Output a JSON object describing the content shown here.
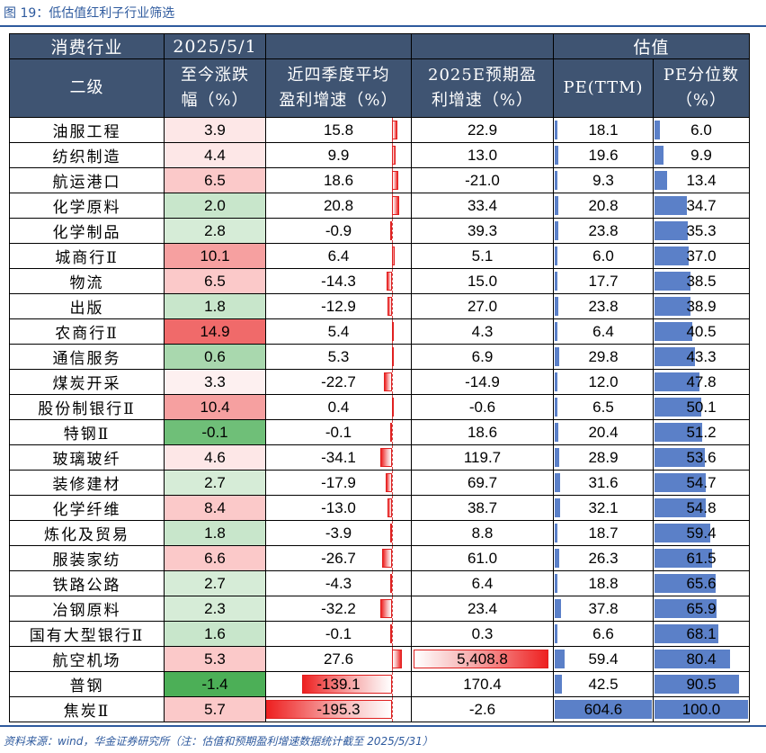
{
  "title": "图 19：低估值红利子行业筛选",
  "source": "资料来源：wind，华金证券研究所（注：估值和预期盈利增速数据统计截至 2025/5/31）",
  "headers": {
    "group1": "消费行业",
    "group2": "2025/5/1",
    "group_val": "估值",
    "col_name": "二级",
    "col_change": "至今涨跌\n幅（%）",
    "col_growth4q": "近四季度平均\n盈利增速（%）",
    "col_growth2025e": "2025E预期盈\n利增速（%）",
    "col_pe": "PE(TTM)",
    "col_pe_pct": "PE分位数\n（%）"
  },
  "rows": [
    {
      "name": "油服工程",
      "change": "3.9",
      "g4q": "15.8",
      "g25": "22.9",
      "pe": "18.1",
      "pct": "6.0"
    },
    {
      "name": "纺织制造",
      "change": "4.4",
      "g4q": "9.9",
      "g25": "13.0",
      "pe": "19.6",
      "pct": "9.9"
    },
    {
      "name": "航运港口",
      "change": "6.5",
      "g4q": "18.6",
      "g25": "-21.0",
      "pe": "9.3",
      "pct": "13.4"
    },
    {
      "name": "化学原料",
      "change": "2.0",
      "g4q": "20.8",
      "g25": "33.4",
      "pe": "20.8",
      "pct": "34.7"
    },
    {
      "name": "化学制品",
      "change": "2.8",
      "g4q": "-0.9",
      "g25": "39.3",
      "pe": "23.8",
      "pct": "35.3"
    },
    {
      "name": "城商行Ⅱ",
      "change": "10.1",
      "g4q": "6.4",
      "g25": "5.1",
      "pe": "6.0",
      "pct": "37.0"
    },
    {
      "name": "物流",
      "change": "6.5",
      "g4q": "-14.3",
      "g25": "15.0",
      "pe": "17.7",
      "pct": "38.5"
    },
    {
      "name": "出版",
      "change": "1.8",
      "g4q": "-12.9",
      "g25": "27.0",
      "pe": "23.8",
      "pct": "38.9"
    },
    {
      "name": "农商行Ⅱ",
      "change": "14.9",
      "g4q": "5.4",
      "g25": "4.3",
      "pe": "6.4",
      "pct": "40.5"
    },
    {
      "name": "通信服务",
      "change": "0.6",
      "g4q": "5.3",
      "g25": "6.9",
      "pe": "29.8",
      "pct": "43.3"
    },
    {
      "name": "煤炭开采",
      "change": "3.3",
      "g4q": "-22.7",
      "g25": "-14.9",
      "pe": "12.0",
      "pct": "47.8"
    },
    {
      "name": "股份制银行Ⅱ",
      "change": "10.4",
      "g4q": "0.4",
      "g25": "-0.6",
      "pe": "6.5",
      "pct": "50.1"
    },
    {
      "name": "特钢Ⅱ",
      "change": "-0.1",
      "g4q": "-0.1",
      "g25": "18.6",
      "pe": "20.4",
      "pct": "51.2"
    },
    {
      "name": "玻璃玻纤",
      "change": "4.6",
      "g4q": "-34.1",
      "g25": "119.7",
      "pe": "28.9",
      "pct": "53.6"
    },
    {
      "name": "装修建材",
      "change": "2.7",
      "g4q": "-17.9",
      "g25": "69.7",
      "pe": "31.6",
      "pct": "54.7"
    },
    {
      "name": "化学纤维",
      "change": "8.4",
      "g4q": "-13.0",
      "g25": "38.7",
      "pe": "32.1",
      "pct": "54.8"
    },
    {
      "name": "炼化及贸易",
      "change": "1.8",
      "g4q": "-3.9",
      "g25": "8.8",
      "pe": "18.7",
      "pct": "59.4"
    },
    {
      "name": "服装家纺",
      "change": "6.6",
      "g4q": "-26.7",
      "g25": "61.0",
      "pe": "26.3",
      "pct": "61.5"
    },
    {
      "name": "铁路公路",
      "change": "2.7",
      "g4q": "-4.3",
      "g25": "6.4",
      "pe": "18.8",
      "pct": "65.6"
    },
    {
      "name": "冶钢原料",
      "change": "2.3",
      "g4q": "-32.2",
      "g25": "23.4",
      "pe": "37.8",
      "pct": "65.9"
    },
    {
      "name": "国有大型银行Ⅱ",
      "change": "1.6",
      "g4q": "-0.1",
      "g25": "0.3",
      "pe": "6.6",
      "pct": "68.1"
    },
    {
      "name": "航空机场",
      "change": "5.3",
      "g4q": "27.6",
      "g25": "5,408.8",
      "pe": "59.4",
      "pct": "80.4"
    },
    {
      "name": "普钢",
      "change": "-1.4",
      "g4q": "-139.1",
      "g25": "170.4",
      "pe": "42.5",
      "pct": "90.5"
    },
    {
      "name": "焦炭Ⅱ",
      "change": "5.7",
      "g4q": "-195.3",
      "g25": "-2.6",
      "pe": "604.6",
      "pct": "100.0"
    }
  ],
  "colors": {
    "header_bg": "#3f5472",
    "accent": "#2e5a9e",
    "bar_blue": "#5b80c8",
    "bar_red": "#ee2020",
    "pos_strong": "#f06a6a",
    "neg_strong": "#5fb66a"
  }
}
